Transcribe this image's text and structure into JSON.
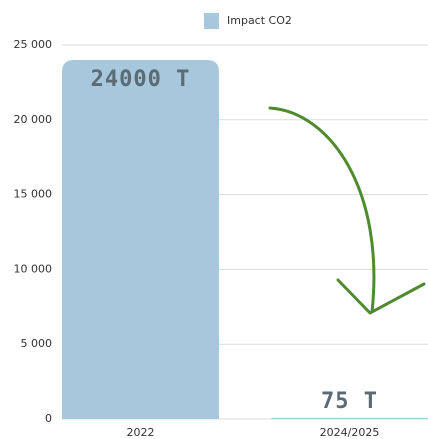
{
  "chart_data": {
    "type": "bar",
    "categories": [
      "2022",
      "2024/2025"
    ],
    "series": [
      {
        "name": "Impact CO2",
        "color": "#a6c7dc",
        "values": [
          24000,
          75
        ],
        "value_labels": [
          "24000 T",
          "75 T"
        ]
      }
    ],
    "ylim": [
      0,
      25000
    ],
    "yticks": [
      0,
      {
        "value": 5000,
        "label": "5 000"
      },
      {
        "value": 10000,
        "label": "10 000"
      },
      {
        "value": 15000,
        "label": "15 000"
      },
      {
        "value": 20000,
        "label": "20 000"
      },
      {
        "value": 25000,
        "label": "25 000"
      }
    ],
    "grid": true
  }
}
